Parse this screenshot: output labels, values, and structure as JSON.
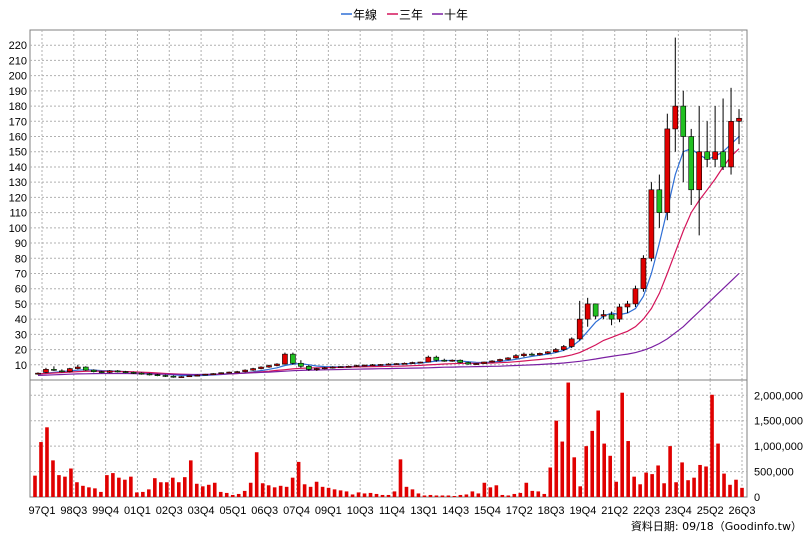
{
  "legend": [
    {
      "name": "年線",
      "color": "#2f6fd6"
    },
    {
      "name": "三年",
      "color": "#d4145a"
    },
    {
      "name": "十年",
      "color": "#7b1fa2"
    }
  ],
  "footer": "資料日期: 09/18（Goodinfo.tw）",
  "chart_data": [
    {
      "type": "candlestick",
      "title": "",
      "ylim": [
        0,
        230
      ],
      "yticks": [
        10,
        20,
        30,
        40,
        50,
        60,
        70,
        80,
        90,
        100,
        110,
        120,
        130,
        140,
        150,
        160,
        170,
        180,
        190,
        200,
        210,
        220
      ],
      "x_tick_labels": [
        "97Q1",
        "98Q3",
        "99Q4",
        "01Q1",
        "02Q3",
        "03Q4",
        "05Q1",
        "06Q3",
        "07Q4",
        "09Q1",
        "10Q3",
        "11Q4",
        "13Q1",
        "14Q3",
        "15Q4",
        "17Q2",
        "18Q3",
        "19Q4",
        "21Q2",
        "22Q3",
        "23Q4",
        "25Q2",
        "26Q3"
      ],
      "grid": true,
      "candles": [
        [
          4,
          5,
          3.5,
          4.5
        ],
        [
          5,
          8,
          4.5,
          7
        ],
        [
          7,
          9,
          6,
          6.5
        ],
        [
          6,
          7,
          5,
          5.5
        ],
        [
          5.5,
          8,
          5,
          7.5
        ],
        [
          7.5,
          10,
          7,
          8.5
        ],
        [
          8.5,
          9,
          6,
          6.5
        ],
        [
          6.5,
          7,
          5,
          5.5
        ],
        [
          5.5,
          6,
          4.5,
          5
        ],
        [
          5,
          6.5,
          4.5,
          6
        ],
        [
          6,
          6.5,
          5,
          5.5
        ],
        [
          5.5,
          6,
          4.5,
          5
        ],
        [
          5,
          5.5,
          4,
          4.5
        ],
        [
          4.5,
          5,
          3.5,
          4
        ],
        [
          4,
          4.5,
          3,
          3.5
        ],
        [
          3.5,
          4,
          2.5,
          3
        ],
        [
          3,
          3.5,
          2,
          2.5
        ],
        [
          2.5,
          3,
          1.5,
          2
        ],
        [
          2,
          2.5,
          1.5,
          2.2
        ],
        [
          2.2,
          3,
          2,
          2.8
        ],
        [
          2.8,
          3.5,
          2.5,
          3.2
        ],
        [
          3.2,
          4,
          3,
          3.8
        ],
        [
          3.8,
          4.5,
          3.5,
          4.2
        ],
        [
          4.2,
          5,
          4,
          4.8
        ],
        [
          4.8,
          5.5,
          4.5,
          5.2
        ],
        [
          5.2,
          6,
          5,
          5.5
        ],
        [
          5.5,
          7,
          5,
          6.5
        ],
        [
          6.5,
          8,
          6,
          7.5
        ],
        [
          7.5,
          9,
          7,
          8.5
        ],
        [
          8.5,
          10,
          8,
          9.5
        ],
        [
          9.5,
          11,
          9,
          10.5
        ],
        [
          10.5,
          18,
          10,
          17
        ],
        [
          17,
          18,
          10,
          11
        ],
        [
          11,
          13,
          8,
          9
        ],
        [
          9,
          10,
          6,
          7
        ],
        [
          7,
          8,
          6,
          7.5
        ],
        [
          7.5,
          8.5,
          7,
          8
        ],
        [
          8,
          9,
          7.5,
          8.5
        ],
        [
          8.5,
          9,
          8,
          8.8
        ],
        [
          8.8,
          9.5,
          8.5,
          9
        ],
        [
          9,
          10,
          8.5,
          9.5
        ],
        [
          9.5,
          10,
          9,
          9.8
        ],
        [
          9.8,
          10.5,
          9.5,
          10
        ],
        [
          10,
          10.5,
          9.5,
          10.2
        ],
        [
          10.2,
          11,
          9.8,
          10.5
        ],
        [
          10.5,
          11,
          10,
          10.8
        ],
        [
          10.8,
          11.5,
          10.5,
          11
        ],
        [
          11,
          12,
          10.5,
          11.5
        ],
        [
          11.5,
          12,
          11,
          11.8
        ],
        [
          11.8,
          16,
          11.5,
          15
        ],
        [
          15,
          16,
          12,
          13
        ],
        [
          13,
          14,
          12,
          12.5
        ],
        [
          12.5,
          13.5,
          12,
          13
        ],
        [
          13,
          13.5,
          11,
          11.5
        ],
        [
          11.5,
          12,
          10,
          10.5
        ],
        [
          10.5,
          11,
          10,
          10.8
        ],
        [
          10.8,
          12,
          10.5,
          11.8
        ],
        [
          11.8,
          13,
          11.5,
          12.5
        ],
        [
          12.5,
          14,
          12,
          13.5
        ],
        [
          13.5,
          15,
          13,
          14.5
        ],
        [
          14.5,
          17,
          14,
          16
        ],
        [
          16,
          18,
          15,
          17
        ],
        [
          17,
          18,
          16,
          16.5
        ],
        [
          16.5,
          18,
          16,
          17.5
        ],
        [
          17.5,
          19,
          17,
          18.5
        ],
        [
          18.5,
          21,
          18,
          20
        ],
        [
          20,
          23,
          19,
          22
        ],
        [
          22,
          28,
          21,
          27
        ],
        [
          27,
          52,
          26,
          40
        ],
        [
          40,
          54,
          35,
          50
        ],
        [
          50,
          48,
          40,
          42
        ],
        [
          42,
          46,
          40,
          43
        ],
        [
          43,
          45,
          36,
          40
        ],
        [
          40,
          50,
          38,
          48
        ],
        [
          48,
          52,
          44,
          50
        ],
        [
          50,
          62,
          48,
          60
        ],
        [
          60,
          82,
          58,
          80
        ],
        [
          80,
          130,
          78,
          125
        ],
        [
          125,
          135,
          100,
          110
        ],
        [
          110,
          175,
          105,
          165
        ],
        [
          165,
          225,
          150,
          180
        ],
        [
          180,
          190,
          130,
          160
        ],
        [
          160,
          165,
          115,
          125
        ],
        [
          125,
          180,
          95,
          150
        ],
        [
          150,
          170,
          140,
          145
        ],
        [
          145,
          180,
          140,
          150
        ],
        [
          150,
          185,
          138,
          140
        ],
        [
          140,
          192,
          135,
          170
        ],
        [
          170,
          178,
          155,
          172
        ]
      ],
      "series": [
        {
          "name": "年線",
          "color": "#2f6fd6",
          "values": [
            4,
            4.5,
            5,
            5.5,
            6,
            6.5,
            6.8,
            6.5,
            6.2,
            6,
            5.8,
            5.5,
            5.2,
            5,
            4.6,
            4.2,
            3.8,
            3.4,
            3,
            2.8,
            2.8,
            3,
            3.3,
            3.6,
            4,
            4.4,
            4.8,
            5.4,
            6.2,
            7,
            8,
            9.5,
            10.5,
            10.8,
            10,
            9.2,
            8.8,
            8.6,
            8.6,
            8.8,
            9,
            9.2,
            9.5,
            9.8,
            10,
            10.3,
            10.6,
            10.9,
            11.2,
            11.8,
            12.4,
            12.8,
            12.8,
            12.5,
            12,
            11.6,
            11.5,
            11.8,
            12.2,
            12.8,
            13.6,
            14.6,
            15.5,
            16.3,
            17,
            18,
            19.5,
            22,
            26,
            32,
            38,
            42,
            44,
            43,
            44,
            47,
            55,
            70,
            90,
            112,
            135,
            150,
            152,
            148,
            145,
            147,
            150,
            155,
            160
          ]
        },
        {
          "name": "三年",
          "color": "#d4145a",
          "values": [
            4,
            4.3,
            4.6,
            4.9,
            5.2,
            5.5,
            5.7,
            5.8,
            5.8,
            5.7,
            5.6,
            5.5,
            5.3,
            5.1,
            4.9,
            4.6,
            4.3,
            4,
            3.8,
            3.6,
            3.5,
            3.5,
            3.6,
            3.8,
            4,
            4.3,
            4.6,
            5,
            5.4,
            5.8,
            6.3,
            6.8,
            7.3,
            7.7,
            7.9,
            8,
            8.1,
            8.2,
            8.3,
            8.5,
            8.6,
            8.7,
            8.8,
            8.9,
            9,
            9.1,
            9.2,
            9.4,
            9.6,
            9.9,
            10.2,
            10.5,
            10.7,
            10.9,
            11,
            11,
            11.1,
            11.2,
            11.4,
            11.6,
            12,
            12.5,
            13,
            13.5,
            14,
            14.6,
            15.4,
            16.5,
            18,
            20.5,
            23,
            26,
            28,
            30,
            32,
            35,
            40,
            47,
            57,
            70,
            84,
            98,
            110,
            118,
            125,
            132,
            140,
            147,
            152
          ]
        },
        {
          "name": "十年",
          "color": "#7b1fa2",
          "values": [
            3,
            3.2,
            3.4,
            3.6,
            3.8,
            4,
            4.1,
            4.2,
            4.3,
            4.3,
            4.3,
            4.3,
            4.2,
            4.1,
            4,
            3.9,
            3.8,
            3.7,
            3.6,
            3.6,
            3.6,
            3.7,
            3.8,
            3.9,
            4.1,
            4.3,
            4.5,
            4.7,
            5,
            5.2,
            5.5,
            5.8,
            6.1,
            6.3,
            6.5,
            6.6,
            6.7,
            6.8,
            6.9,
            7,
            7.1,
            7.2,
            7.3,
            7.4,
            7.5,
            7.6,
            7.7,
            7.8,
            7.9,
            8,
            8.2,
            8.4,
            8.5,
            8.6,
            8.7,
            8.8,
            8.9,
            9,
            9.1,
            9.3,
            9.5,
            9.7,
            9.9,
            10.2,
            10.5,
            10.8,
            11.2,
            11.7,
            12.3,
            13,
            13.8,
            14.7,
            15.5,
            16.3,
            17,
            18,
            19.5,
            21.5,
            24,
            27,
            31,
            35,
            40,
            45,
            50,
            55,
            60,
            65,
            70
          ]
        }
      ],
      "volume": {
        "ylim": [
          0,
          2300000
        ],
        "yticks": [
          0,
          500000,
          1000000,
          1500000,
          2000000
        ],
        "ytick_labels": [
          "0",
          "500,000",
          "1,000,000",
          "1,500,000",
          "2,000,000"
        ],
        "color": "#e00000",
        "values": [
          420000,
          1080000,
          1370000,
          720000,
          430000,
          400000,
          560000,
          290000,
          220000,
          190000,
          170000,
          100000,
          430000,
          470000,
          380000,
          340000,
          400000,
          90000,
          100000,
          150000,
          370000,
          290000,
          290000,
          380000,
          290000,
          390000,
          720000,
          260000,
          210000,
          240000,
          280000,
          100000,
          80000,
          40000,
          60000,
          120000,
          280000,
          880000,
          270000,
          230000,
          190000,
          220000,
          200000,
          380000,
          690000,
          250000,
          200000,
          300000,
          200000,
          180000,
          150000,
          130000,
          110000,
          50000,
          90000,
          70000,
          80000,
          60000,
          40000,
          40000,
          110000,
          740000,
          200000,
          150000,
          70000,
          30000,
          40000,
          30000,
          30000,
          30000,
          20000,
          40000,
          50000,
          110000,
          70000,
          280000,
          190000,
          230000,
          40000,
          30000,
          60000,
          80000,
          280000,
          120000,
          110000,
          60000,
          580000,
          1500000,
          1090000,
          2250000,
          780000,
          210000,
          1000000,
          1300000,
          1700000,
          1050000,
          810000,
          300000,
          2050000,
          1100000,
          400000,
          250000,
          480000,
          450000,
          620000,
          270000,
          1000000,
          290000,
          680000,
          330000,
          380000,
          630000,
          600000,
          2010000,
          1050000,
          460000,
          240000,
          340000,
          180000
        ]
      }
    }
  ]
}
